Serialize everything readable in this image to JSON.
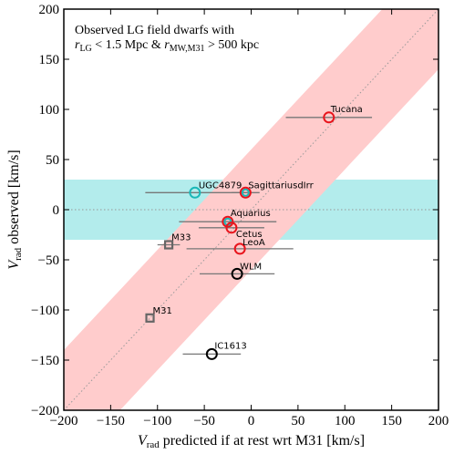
{
  "chart_data": {
    "type": "scatter",
    "x_label": {
      "symbol": "V",
      "subscript": "rad",
      "text": " predicted if at rest wrt M31 [km/s]"
    },
    "y_label": {
      "symbol": "V",
      "subscript": "rad",
      "text": " observed [km/s]"
    },
    "annotation": {
      "line1": "Observed LG field dwarfs with",
      "line2": [
        {
          "text": "r",
          "sub": false,
          "italic": true
        },
        {
          "text": "LG",
          "sub": true,
          "italic": false
        },
        {
          "text": " < 1.5 Mpc & ",
          "sub": false,
          "italic": false
        },
        {
          "text": "r",
          "sub": false,
          "italic": true
        },
        {
          "text": "MW,M31",
          "sub": true,
          "italic": false
        },
        {
          "text": " > 500 kpc",
          "sub": false,
          "italic": false
        }
      ]
    },
    "xlim": [
      -200,
      200
    ],
    "ylim": [
      -200,
      200
    ],
    "xticks": [
      {
        "value": -200,
        "label": "−200"
      },
      {
        "value": -150,
        "label": "−150"
      },
      {
        "value": -100,
        "label": "−100"
      },
      {
        "value": -50,
        "label": "−50"
      },
      0,
      50,
      100,
      150,
      200
    ],
    "yticks": [
      {
        "value": -200,
        "label": "−200"
      },
      {
        "value": -150,
        "label": "−150"
      },
      {
        "value": -100,
        "label": "−100"
      },
      {
        "value": -50,
        "label": "−50"
      },
      0,
      50,
      100,
      150,
      200
    ],
    "highlight_band": {
      "range": [
        -30,
        30
      ],
      "color": "#b3ecec"
    },
    "diagonal_band": {
      "halfwidth": 60,
      "color": "#ffcccc"
    },
    "points": [
      {
        "name": "Tucana",
        "x": 83,
        "y": 92,
        "xerr": 46,
        "marker": "circle",
        "color": "#e8141c"
      },
      {
        "name": "UGC4879",
        "x": -60,
        "y": 17,
        "xerr": 53,
        "marker": "circle",
        "color": "#1ab8b8"
      },
      {
        "name": "SagittariusdIrr",
        "x": -6,
        "y": 17,
        "xerr": 15,
        "marker": "circle",
        "color": "#e8141c"
      },
      {
        "name": "Aquarius",
        "x": -25,
        "y": -12,
        "xerr": 52,
        "marker": "circle",
        "color": "#e8141c"
      },
      {
        "name": null,
        "x": -25,
        "y": -12,
        "xerr": 0,
        "marker": "circle-inner",
        "color": "#1ab8b8"
      },
      {
        "name": null,
        "x": -6,
        "y": 17,
        "xerr": 0,
        "marker": "circle-inner",
        "color": "#1ab8b8"
      },
      {
        "name": "Cetus",
        "x": -21,
        "y": -18,
        "xerr": 35,
        "marker": "circle",
        "color": "#e8141c"
      },
      {
        "name": "LeoA",
        "x": -12,
        "y": -39,
        "xerr": 57,
        "marker": "circle",
        "color": "#e8141c"
      },
      {
        "name": "WLM",
        "x": -15,
        "y": -64,
        "xerr": 40,
        "marker": "circle",
        "color": "#000000"
      },
      {
        "name": "IC1613",
        "x": -42,
        "y": -144,
        "xerr": 31,
        "marker": "circle",
        "color": "#000000"
      },
      {
        "name": "M33",
        "x": -88,
        "y": -35,
        "xerr": 12,
        "marker": "square",
        "color": "#666666"
      },
      {
        "name": "M31",
        "x": -108,
        "y": -108,
        "xerr": 0,
        "marker": "square",
        "color": "#666666"
      }
    ]
  }
}
